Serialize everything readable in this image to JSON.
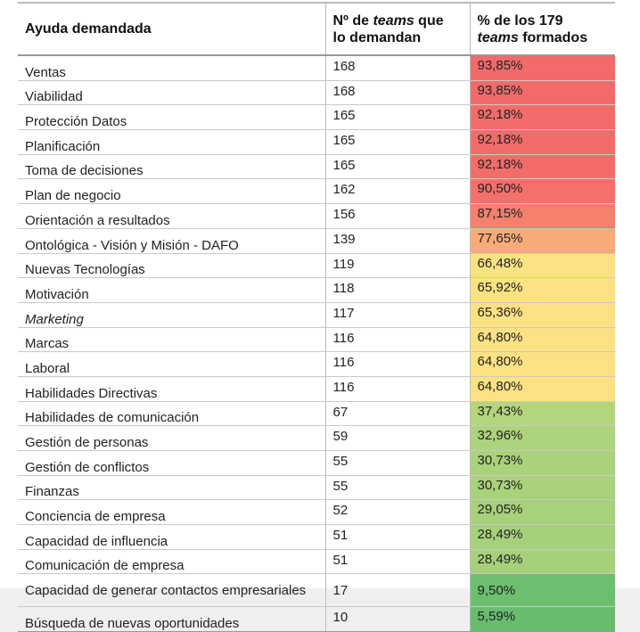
{
  "header": {
    "columns": [
      {
        "runs": [
          "Ayuda demandada"
        ]
      },
      {
        "runs": [
          "Nº de ",
          "teams",
          " que",
          "lo demandan"
        ]
      },
      {
        "runs": [
          "% de los 179",
          "teams",
          " formados"
        ]
      }
    ]
  },
  "table": {
    "rows": [
      [
        "Ventas",
        168,
        "93,85%"
      ],
      [
        "Viabilidad",
        168,
        "93,85%"
      ],
      [
        "Protección Datos",
        165,
        "92,18%"
      ],
      [
        "Planificación",
        165,
        "92,18%"
      ],
      [
        "Toma de decisiones",
        165,
        "92,18%"
      ],
      [
        "Plan de negocio",
        162,
        "90,50%"
      ],
      [
        "Orientación a resultados",
        156,
        "87,15%"
      ],
      [
        "Ontológica - Visión y Misión - DAFO",
        139,
        "77,65%"
      ],
      [
        "Nuevas Tecnologías",
        119,
        "66,48%"
      ],
      [
        "Motivación",
        118,
        "65,92%"
      ],
      [
        "Marketing",
        117,
        "65,36%"
      ],
      [
        "Marcas",
        116,
        "64,80%"
      ],
      [
        "Laboral",
        116,
        "64,80%"
      ],
      [
        "Habilidades Directivas",
        116,
        "64,80%"
      ],
      [
        "Habilidades de comunicación",
        67,
        "37,43%"
      ],
      [
        "Gestión de personas",
        59,
        "32,96%"
      ],
      [
        "Gestión de conflictos",
        55,
        "30,73%"
      ],
      [
        "Finanzas",
        55,
        "30,73%"
      ],
      [
        "Conciencia de empresa",
        52,
        "29,05%"
      ],
      [
        "Capacidad de influencia",
        51,
        "28,49%"
      ],
      [
        "Comunicación de empresa",
        51,
        "28,49%"
      ],
      [
        "Capacidad de generar contactos empresariales",
        17,
        "9,50%"
      ],
      [
        "Búsqueda de nuevas oportunidades",
        10,
        "5,59%"
      ]
    ],
    "heat_colors": [
      "#f26a6a",
      "#f26a6a",
      "#f26c6a",
      "#f26c6a",
      "#f26c6a",
      "#f3706b",
      "#f5806d",
      "#f9ab77",
      "#fde283",
      "#fde283",
      "#fde283",
      "#fde283",
      "#fde283",
      "#fde283",
      "#b3d57d",
      "#add37c",
      "#aad27b",
      "#aad27b",
      "#a8d17b",
      "#a7d07b",
      "#a7d07b",
      "#6cbf6e",
      "#67bd6d"
    ]
  }
}
